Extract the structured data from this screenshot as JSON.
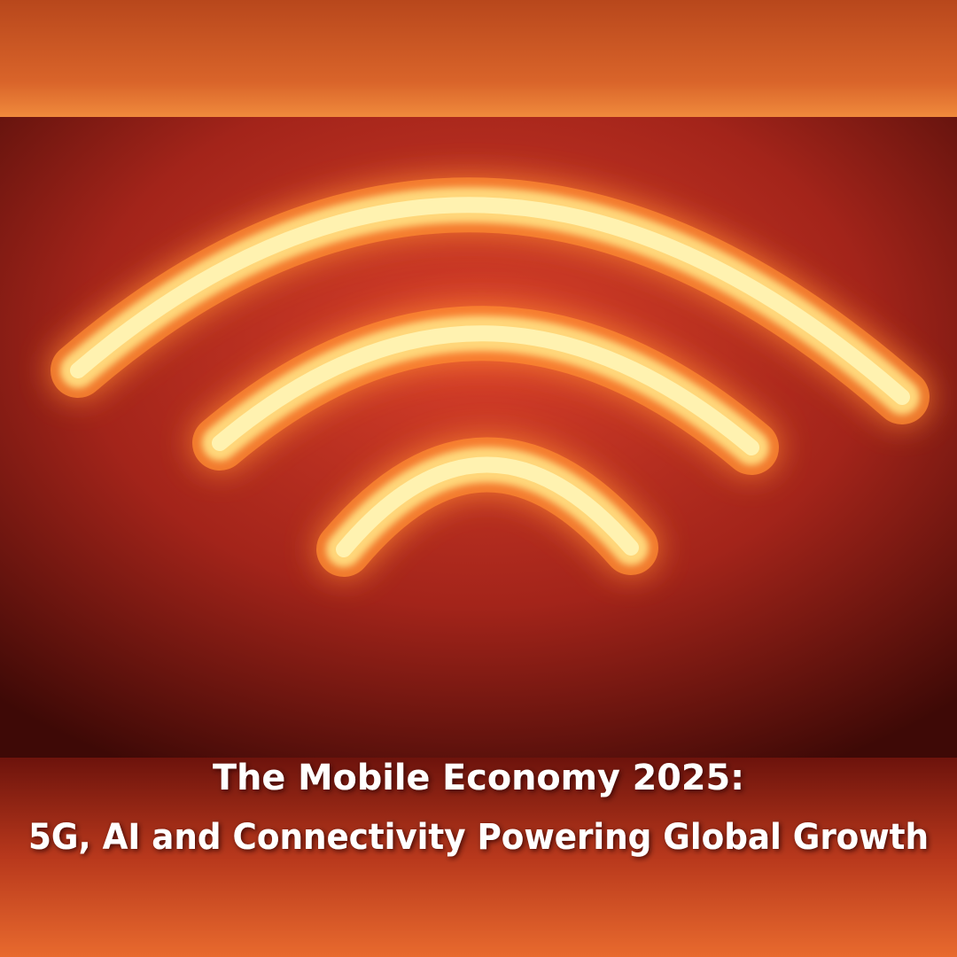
{
  "title": {
    "line1": "The Mobile Economy 2025:",
    "line2": "5G, AI and Connectivity Powering Global Growth"
  }
}
